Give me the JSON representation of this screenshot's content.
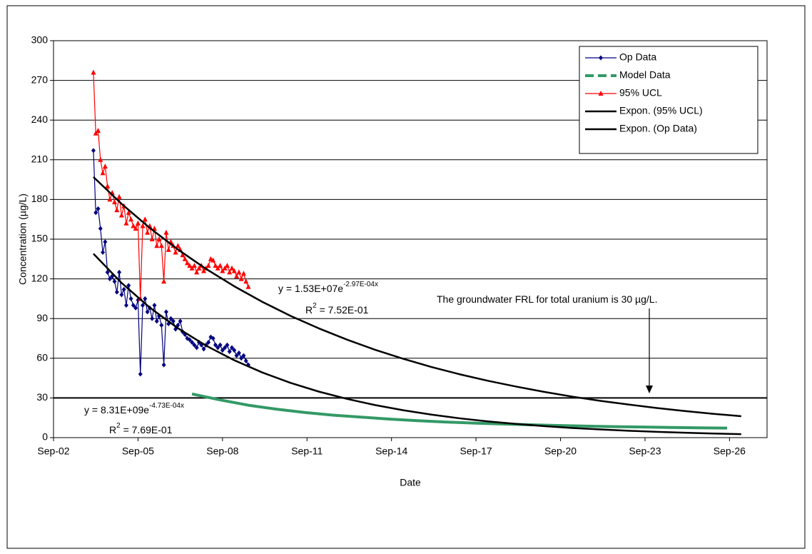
{
  "chart_data": {
    "type": "line",
    "x_label": "Date",
    "y_label": "Concentration (µg/L)",
    "xlim": [
      "2002-09",
      "2028-01"
    ],
    "xticks": [
      {
        "value": "2002-09",
        "label": "Sep-02"
      },
      {
        "value": "2005-09",
        "label": "Sep-05"
      },
      {
        "value": "2008-09",
        "label": "Sep-08"
      },
      {
        "value": "2011-09",
        "label": "Sep-11"
      },
      {
        "value": "2014-09",
        "label": "Sep-14"
      },
      {
        "value": "2017-09",
        "label": "Sep-17"
      },
      {
        "value": "2020-09",
        "label": "Sep-20"
      },
      {
        "value": "2023-09",
        "label": "Sep-23"
      },
      {
        "value": "2026-09",
        "label": "Sep-26"
      }
    ],
    "ylim": [
      0,
      300
    ],
    "yticks": [
      0,
      30,
      60,
      90,
      120,
      150,
      180,
      210,
      240,
      270,
      300
    ],
    "grid": true,
    "legend": "upper right",
    "threshold": 30,
    "series": [
      {
        "name": "Op Data",
        "color": "#000080",
        "marker": "diamond",
        "x": [
          "2004-02",
          "2004-03",
          "2004-04",
          "2004-05",
          "2004-06",
          "2004-07",
          "2004-08",
          "2004-09",
          "2004-10",
          "2004-11",
          "2004-12",
          "2005-01",
          "2005-02",
          "2005-03",
          "2005-04",
          "2005-05",
          "2005-06",
          "2005-07",
          "2005-08",
          "2005-09",
          "2005-10",
          "2005-11",
          "2005-12",
          "2006-01",
          "2006-02",
          "2006-03",
          "2006-04",
          "2006-05",
          "2006-06",
          "2006-07",
          "2006-08",
          "2006-09",
          "2006-10",
          "2006-11",
          "2006-12",
          "2007-01",
          "2007-02",
          "2007-03",
          "2007-04",
          "2007-05",
          "2007-06",
          "2007-07",
          "2007-08",
          "2007-09",
          "2007-10",
          "2007-11",
          "2007-12",
          "2008-01",
          "2008-02",
          "2008-03",
          "2008-04",
          "2008-05",
          "2008-06",
          "2008-07",
          "2008-08",
          "2008-09",
          "2008-10",
          "2008-11",
          "2008-12",
          "2009-01",
          "2009-02",
          "2009-03",
          "2009-04",
          "2009-05",
          "2009-06",
          "2009-07",
          "2009-08"
        ],
        "values": [
          217,
          170,
          173,
          158,
          140,
          148,
          125,
          120,
          122,
          118,
          110,
          125,
          108,
          112,
          100,
          115,
          105,
          100,
          98,
          104,
          48,
          100,
          105,
          95,
          98,
          90,
          100,
          88,
          92,
          85,
          55,
          95,
          86,
          90,
          88,
          82,
          85,
          88,
          80,
          78,
          75,
          74,
          72,
          70,
          68,
          72,
          70,
          67,
          70,
          72,
          76,
          75,
          70,
          68,
          70,
          66,
          68,
          70,
          65,
          68,
          66,
          62,
          64,
          60,
          62,
          58,
          55
        ]
      },
      {
        "name": "Model Data",
        "color": "#339966",
        "dash": true,
        "x": [
          "2007-08",
          "2008-08",
          "2009-08",
          "2010-08",
          "2011-08",
          "2012-08",
          "2013-08",
          "2014-08",
          "2015-08",
          "2016-08",
          "2017-08",
          "2018-08",
          "2019-08",
          "2020-08",
          "2021-08",
          "2022-08",
          "2023-08",
          "2024-08",
          "2025-08",
          "2026-08"
        ],
        "values": [
          33,
          28.5,
          24.5,
          21.5,
          19,
          17,
          15.5,
          14,
          12.8,
          11.8,
          11,
          10.3,
          9.7,
          9.2,
          8.7,
          8.3,
          8,
          7.7,
          7.4,
          7.2
        ]
      },
      {
        "name": "95% UCL",
        "color": "#ff0000",
        "marker": "triangle",
        "x": [
          "2004-02",
          "2004-03",
          "2004-04",
          "2004-05",
          "2004-06",
          "2004-07",
          "2004-08",
          "2004-09",
          "2004-10",
          "2004-11",
          "2004-12",
          "2005-01",
          "2005-02",
          "2005-03",
          "2005-04",
          "2005-05",
          "2005-06",
          "2005-07",
          "2005-08",
          "2005-09",
          "2005-10",
          "2005-11",
          "2005-12",
          "2006-01",
          "2006-02",
          "2006-03",
          "2006-04",
          "2006-05",
          "2006-06",
          "2006-07",
          "2006-08",
          "2006-09",
          "2006-10",
          "2006-11",
          "2006-12",
          "2007-01",
          "2007-02",
          "2007-03",
          "2007-04",
          "2007-05",
          "2007-06",
          "2007-07",
          "2007-08",
          "2007-09",
          "2007-10",
          "2007-11",
          "2007-12",
          "2008-01",
          "2008-02",
          "2008-03",
          "2008-04",
          "2008-05",
          "2008-06",
          "2008-07",
          "2008-08",
          "2008-09",
          "2008-10",
          "2008-11",
          "2008-12",
          "2009-01",
          "2009-02",
          "2009-03",
          "2009-04",
          "2009-05",
          "2009-06",
          "2009-07",
          "2009-08"
        ],
        "values": [
          276,
          230,
          232,
          210,
          200,
          205,
          190,
          180,
          185,
          178,
          172,
          182,
          168,
          175,
          162,
          170,
          165,
          160,
          158,
          162,
          105,
          160,
          165,
          155,
          160,
          150,
          158,
          145,
          150,
          145,
          118,
          155,
          142,
          148,
          145,
          140,
          145,
          142,
          138,
          135,
          132,
          130,
          128,
          130,
          125,
          128,
          130,
          126,
          128,
          130,
          135,
          134,
          130,
          128,
          130,
          126,
          128,
          130,
          125,
          128,
          126,
          122,
          125,
          120,
          124,
          118,
          114
        ]
      },
      {
        "name": "Expon. (95% UCL)",
        "color": "#000000",
        "x": [
          "2004-02",
          "2005-02",
          "2006-02",
          "2007-02",
          "2008-02",
          "2009-02",
          "2010-02",
          "2011-02",
          "2012-02",
          "2013-02",
          "2014-02",
          "2015-02",
          "2016-02",
          "2017-02",
          "2018-02",
          "2019-02",
          "2020-02",
          "2021-02",
          "2022-02",
          "2023-02",
          "2024-02",
          "2025-02",
          "2026-02",
          "2027-02"
        ],
        "values": [
          197,
          176.7,
          158.5,
          142.2,
          127.5,
          114.4,
          102.6,
          92,
          82.6,
          74.1,
          66.4,
          59.6,
          53.4,
          47.9,
          43,
          38.6,
          34.6,
          31,
          27.8,
          25,
          22.4,
          20.1,
          18,
          16.2
        ]
      },
      {
        "name": "Expon. (Op Data)",
        "color": "#000000",
        "x": [
          "2004-02",
          "2005-02",
          "2006-02",
          "2007-02",
          "2008-02",
          "2009-02",
          "2010-02",
          "2011-02",
          "2012-02",
          "2013-02",
          "2014-02",
          "2015-02",
          "2016-02",
          "2017-02",
          "2018-02",
          "2019-02",
          "2020-02",
          "2021-02",
          "2022-02",
          "2023-02",
          "2024-02",
          "2025-02",
          "2026-02",
          "2027-02"
        ],
        "values": [
          139,
          116.9,
          98.3,
          82.7,
          69.5,
          58.5,
          49.2,
          41.4,
          34.8,
          29.3,
          24.6,
          20.7,
          17.4,
          14.6,
          12.3,
          10.4,
          8.7,
          7.3,
          6.2,
          5.2,
          4.4,
          3.7,
          3.1,
          2.6
        ]
      }
    ],
    "annotations": [
      {
        "text": "y = 1.53E+07e",
        "sup": "-2.97E-04x"
      },
      {
        "text": "R",
        "sup": "2",
        "after": " = 7.52E-01"
      },
      {
        "text": "y = 8.31E+09e",
        "sup": "-4.73E-04x"
      },
      {
        "text": "R",
        "sup": "2",
        "after": " = 7.69E-01"
      },
      {
        "text": "The groundwater FRL for total uranium is 30 µg/L."
      }
    ]
  }
}
